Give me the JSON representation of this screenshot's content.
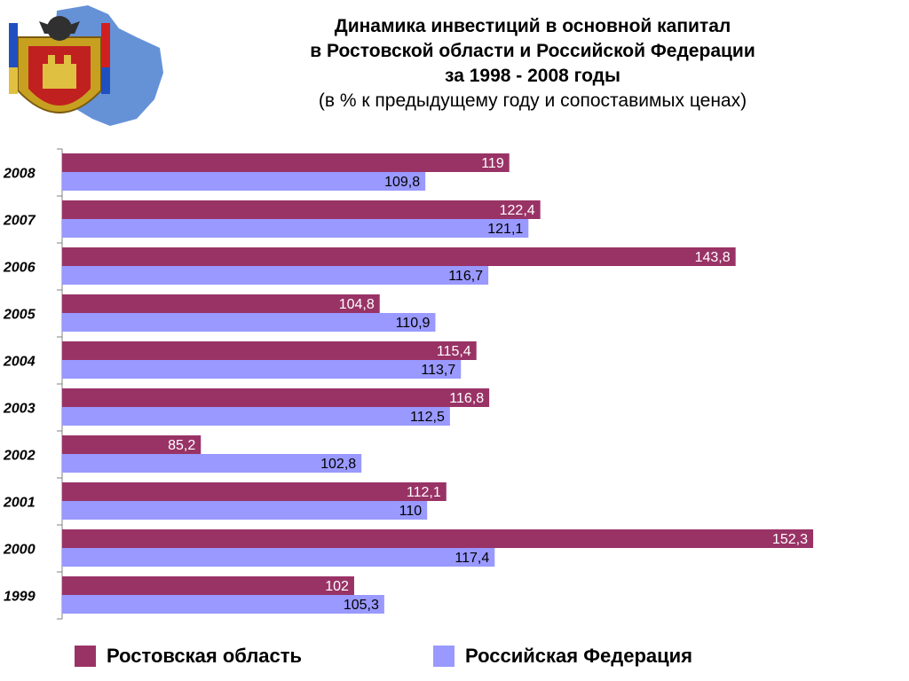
{
  "header": {
    "title_lines": [
      "Динамика инвестиций в основной капитал",
      "в Ростовской области и Российской Федерации",
      "за 1998 - 2008 годы"
    ],
    "subtitle": "(в % к предыдущему году и сопоставимых ценах)"
  },
  "colors": {
    "rostov": "#993366",
    "russia": "#9999ff",
    "axis": "#808080"
  },
  "icons": {
    "logo": "rostov-oblast-coat-of-arms-icon"
  },
  "chart_data": {
    "type": "bar",
    "orientation": "horizontal",
    "categories": [
      "2008",
      "2007",
      "2006",
      "2005",
      "2004",
      "2003",
      "2002",
      "2001",
      "2000",
      "1999"
    ],
    "series": [
      {
        "name": "Ростовская область",
        "values": [
          119,
          122.4,
          143.8,
          104.8,
          115.4,
          116.8,
          85.2,
          112.1,
          152.3,
          102
        ],
        "labels": [
          "119",
          "122,4",
          "143,8",
          "104,8",
          "115,4",
          "116,8",
          "85,2",
          "112,1",
          "152,3",
          "102"
        ]
      },
      {
        "name": "Российская Федерация",
        "values": [
          109.8,
          121.1,
          116.7,
          110.9,
          113.7,
          112.5,
          102.8,
          110,
          117.4,
          105.3
        ],
        "labels": [
          "109,8",
          "121,1",
          "116,7",
          "110,9",
          "113,7",
          "112,5",
          "102,8",
          "110",
          "117,4",
          "105,3"
        ]
      }
    ],
    "xlim": [
      70,
      154
    ],
    "grid": false,
    "legend_position": "bottom"
  }
}
